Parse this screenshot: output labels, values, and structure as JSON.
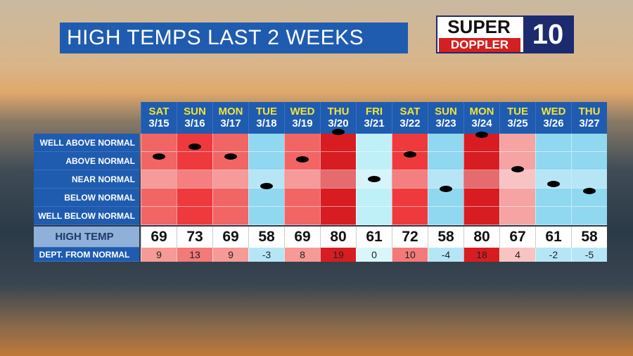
{
  "title": "HIGH TEMPS LAST 2 WEEKS",
  "logo": {
    "line1": "SUPER",
    "line2": "DOPPLER",
    "number": "10"
  },
  "row_labels": [
    "WELL ABOVE NORMAL",
    "ABOVE NORMAL",
    "NEAR NORMAL",
    "BELOW NORMAL",
    "WELL BELOW NORMAL"
  ],
  "high_label": "HIGH TEMP",
  "dept_label": "DEPT. FROM NORMAL",
  "days": [
    {
      "day": "SAT",
      "date": "3/15",
      "high": 69,
      "departure": 9
    },
    {
      "day": "SUN",
      "date": "3/16",
      "high": 73,
      "departure": 13
    },
    {
      "day": "MON",
      "date": "3/17",
      "high": 69,
      "departure": 9
    },
    {
      "day": "TUE",
      "date": "3/18",
      "high": 58,
      "departure": -3
    },
    {
      "day": "WED",
      "date": "3/19",
      "high": 69,
      "departure": 8
    },
    {
      "day": "THU",
      "date": "3/20",
      "high": 80,
      "departure": 19
    },
    {
      "day": "FRI",
      "date": "3/21",
      "high": 61,
      "departure": 0
    },
    {
      "day": "SAT",
      "date": "3/22",
      "high": 72,
      "departure": 10
    },
    {
      "day": "SUN",
      "date": "3/23",
      "high": 58,
      "departure": -4
    },
    {
      "day": "MON",
      "date": "3/24",
      "high": 80,
      "departure": 18
    },
    {
      "day": "TUE",
      "date": "3/25",
      "high": 67,
      "departure": 4
    },
    {
      "day": "WED",
      "date": "3/26",
      "high": 61,
      "departure": -2
    },
    {
      "day": "THU",
      "date": "3/27",
      "high": 58,
      "departure": -5
    }
  ]
}
